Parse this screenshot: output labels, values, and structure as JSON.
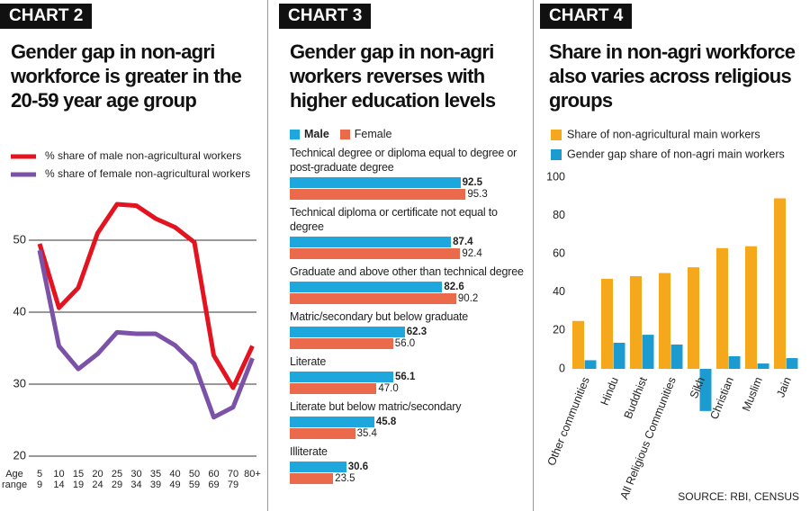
{
  "chart_data": [
    {
      "type": "line",
      "label": "CHART 2",
      "title": "Gender gap in non-agri workforce is greater in the 20-59 year age group",
      "x_label": "Age range",
      "categories": [
        "5 9",
        "10 14",
        "15 19",
        "20 24",
        "25 29",
        "30 34",
        "35 39",
        "40 49",
        "50 59",
        "60 69",
        "70 79",
        "80+"
      ],
      "series": [
        {
          "name": "% share of male non-agricultural workers",
          "color": "#e3141f",
          "values": [
            49.5,
            40.6,
            43.4,
            51,
            55,
            54.8,
            53,
            51.8,
            49.7,
            34,
            29.5,
            35.3
          ]
        },
        {
          "name": "% share of female non-agricultural workers",
          "color": "#7b52a8",
          "values": [
            48.6,
            35.3,
            32.1,
            34.2,
            37.2,
            37,
            37,
            35.4,
            32.8,
            25.4,
            26.8,
            33.6
          ]
        }
      ],
      "ylim": [
        20,
        58.5
      ],
      "yticks": [
        20,
        30,
        40,
        50
      ],
      "grid": true
    },
    {
      "type": "hbar",
      "label": "CHART 3",
      "title": "Gender gap in non-agri workers reverses with higher education levels",
      "categories": [
        "Technical degree or diploma equal to degree or post-graduate degree",
        "Technical diploma or certificate not equal to degree",
        "Graduate and above other than technical degree",
        "Matric/secondary but below graduate",
        "Literate",
        "Literate but below matric/secondary",
        "Illiterate"
      ],
      "series": [
        {
          "name": "Male",
          "color": "#1da7dc",
          "values": [
            92.5,
            87.4,
            82.6,
            62.3,
            56.1,
            45.8,
            30.6
          ]
        },
        {
          "name": "Female",
          "color": "#ec6a4c",
          "values": [
            95.3,
            92.4,
            90.2,
            56.0,
            47.0,
            35.4,
            23.5
          ],
          "value_labels": [
            "95.3",
            "92.4",
            "90.2",
            "56.0",
            "47.0",
            "35.4",
            "23.5"
          ]
        }
      ],
      "xlim": [
        0,
        100
      ]
    },
    {
      "type": "bar",
      "label": "CHART 4",
      "title": "Share in non-agri workforce also varies across religious groups",
      "categories": [
        "Other communities",
        "Hindu",
        "Buddhist",
        "All Religious Communities",
        "Sikh",
        "Christian",
        "Muslim",
        "Jain"
      ],
      "series": [
        {
          "name": "Share of non-agricultural main workers",
          "color": "#f6a81c",
          "values": [
            25,
            47,
            48.4,
            50,
            53,
            63,
            64,
            89
          ]
        },
        {
          "name": "Gender gap share of non-agri main workers",
          "color": "#1b9bd0",
          "values": [
            4.5,
            13.6,
            17.8,
            12.7,
            -22,
            6.6,
            2.8,
            5.6
          ]
        }
      ],
      "ylim": [
        -23,
        100
      ],
      "yticks": [
        0,
        20,
        40,
        60,
        80,
        100
      ],
      "grid": false,
      "source": "SOURCE: RBI, CENSUS"
    }
  ]
}
